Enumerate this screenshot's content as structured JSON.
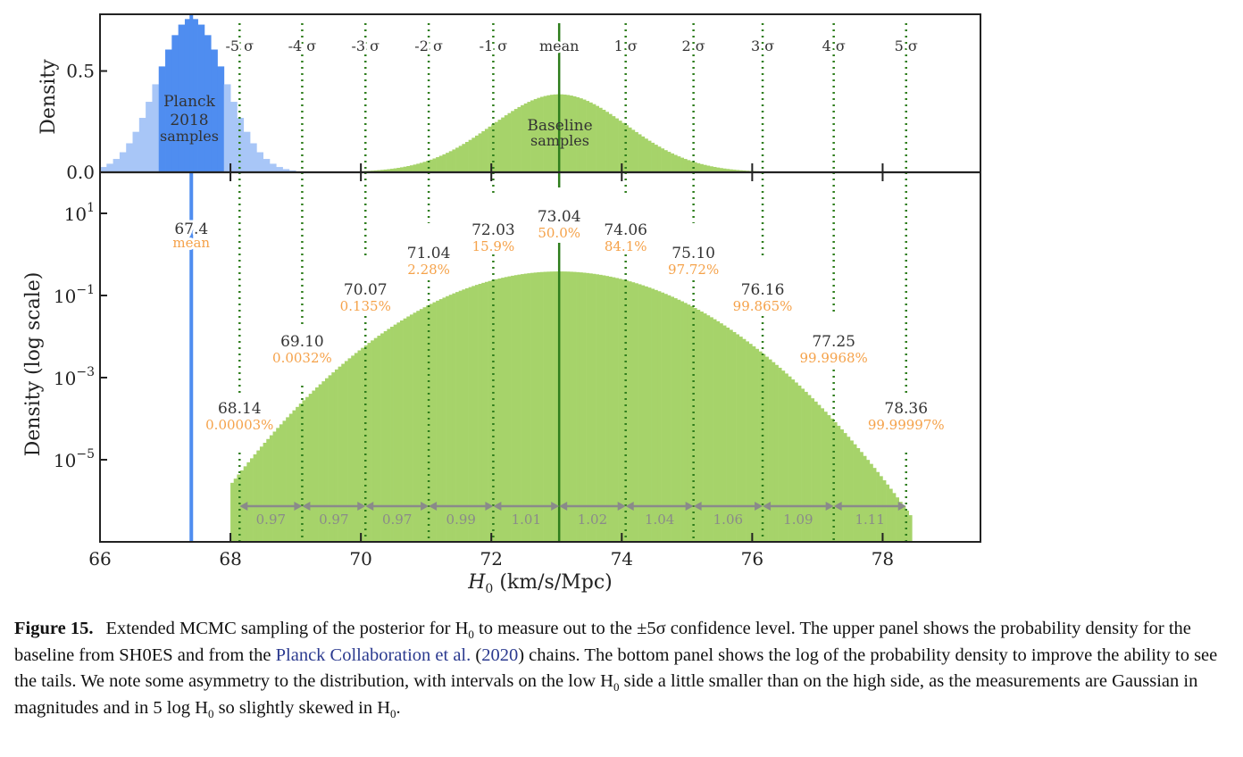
{
  "chart_data": [
    {
      "type": "bar",
      "panel": "upper",
      "ylabel": "Density",
      "yticks": [
        "0.0",
        "0.5"
      ],
      "ylim": [
        0,
        0.78
      ],
      "xlim": [
        66,
        79.5
      ],
      "series": [
        {
          "curve": "gaussian",
          "mean": 67.4,
          "sigma": 0.52,
          "peak": 0.76
        },
        {
          "curve": "gaussian",
          "mean": 73.04,
          "sigma": 1.03,
          "peak": 0.385
        }
      ],
      "annotations": {
        "planck_line1": "Planck",
        "planck_line2": "2018",
        "planck_line3": "samples",
        "baseline_line1": "Baseline",
        "baseline_line2": "samples"
      },
      "sigma_labels": [
        "-5 σ",
        "-4 σ",
        "-3 σ",
        "-2 σ",
        "-1 σ",
        "mean",
        "1 σ",
        "2 σ",
        "3 σ",
        "4 σ",
        "5 σ"
      ],
      "grid": false
    },
    {
      "type": "bar",
      "panel": "lower",
      "ylabel": "Density (log scale)",
      "yscale": "log",
      "yticks": [
        {
          "mant": "10",
          "exp": "1"
        },
        {
          "mant": "10",
          "exp": "−1"
        },
        {
          "mant": "10",
          "exp": "−3"
        },
        {
          "mant": "10",
          "exp": "−5"
        }
      ],
      "ylim_log10": [
        -7.0,
        2.0
      ],
      "xlabel_italic": "H",
      "xlabel_sub": "0",
      "xlabel_rest": " (km/s/Mpc)",
      "xticks": [
        "66",
        "68",
        "70",
        "72",
        "74",
        "76",
        "78"
      ],
      "xlim": [
        66,
        79.5
      ],
      "planck_mean": {
        "value": "67.4",
        "label": "mean",
        "x": 67.4
      },
      "sigma_points": [
        {
          "x": 68.14,
          "value": "68.14",
          "percentile": "0.00003%"
        },
        {
          "x": 69.1,
          "value": "69.10",
          "percentile": "0.0032%"
        },
        {
          "x": 70.07,
          "value": "70.07",
          "percentile": "0.135%"
        },
        {
          "x": 71.04,
          "value": "71.04",
          "percentile": "2.28%"
        },
        {
          "x": 72.03,
          "value": "72.03",
          "percentile": "15.9%"
        },
        {
          "x": 73.04,
          "value": "73.04",
          "percentile": "50.0%"
        },
        {
          "x": 74.06,
          "value": "74.06",
          "percentile": "84.1%"
        },
        {
          "x": 75.1,
          "value": "75.10",
          "percentile": "97.72%"
        },
        {
          "x": 76.16,
          "value": "76.16",
          "percentile": "99.865%"
        },
        {
          "x": 77.25,
          "value": "77.25",
          "percentile": "99.9968%"
        },
        {
          "x": 78.36,
          "value": "78.36",
          "percentile": "99.99997%"
        }
      ],
      "intervals": [
        "0.97",
        "0.97",
        "0.97",
        "0.99",
        "1.01",
        "1.02",
        "1.04",
        "1.06",
        "1.09",
        "1.11"
      ],
      "series": [
        {
          "curve": "gaussian",
          "mean": 73.04,
          "sigma": 1.03,
          "peak": 0.385,
          "range": [
            68.0,
            78.7
          ]
        }
      ],
      "grid": false
    }
  ],
  "colors": {
    "planck": "#4f8df0",
    "planck_light": "#a8c6f7",
    "baseline": "#a6d36a",
    "sigma_lines": "#2e7d1c",
    "percentile": "#f5a24a",
    "interval_arrow": "#8a8a8a"
  },
  "caption": {
    "label": "Figure 15.",
    "text_1": "Extended MCMC sampling of the posterior for H",
    "sub_1": "0",
    "text_2": " to measure out to the ±5σ confidence level. The upper panel shows the probability density for the baseline from SH0ES and from the ",
    "ref": "Planck Collaboration et al.",
    "ref_open": " (",
    "ref_year": "2020",
    "text_3": ") chains. The bottom panel shows the log of the probability density to improve the ability to see the tails. We note some asymmetry to the distribution, with intervals on the low H",
    "sub_2": "0",
    "text_4": " side a little smaller than on the high side, as the measurements are Gaussian in magnitudes and in 5 log H",
    "sub_3": "0",
    "text_5": " so slightly skewed in H",
    "sub_4": "0",
    "text_6": "."
  }
}
